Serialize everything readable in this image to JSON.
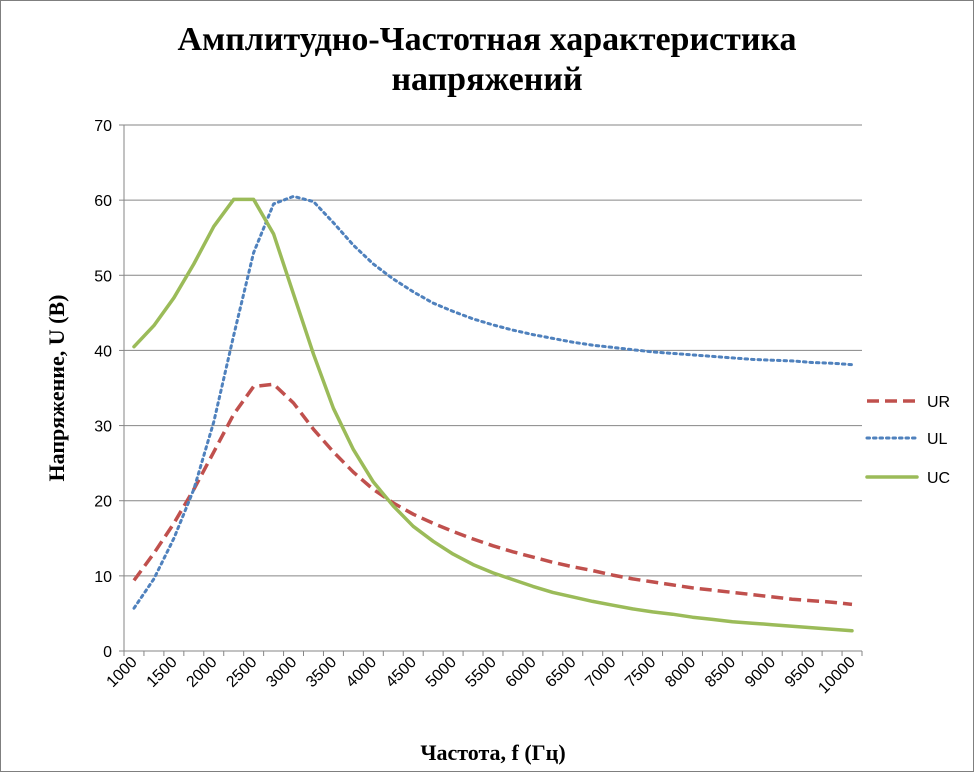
{
  "chart_data": {
    "type": "line",
    "title": "Амплитудно-Частотная характеристика напряжений",
    "title_lines": [
      "Амплитудно-Частотная характеристика",
      "напряжений"
    ],
    "xlabel": "Частота, f (Гц)",
    "ylabel": "Напряжение, U (В)",
    "ylim": [
      0,
      70
    ],
    "y_ticks": [
      "0",
      "10",
      "20",
      "30",
      "40",
      "50",
      "60",
      "70"
    ],
    "grid": true,
    "legend_position": "right",
    "x": [
      1000,
      1250,
      1500,
      1750,
      2000,
      2250,
      2500,
      2750,
      3000,
      3250,
      3500,
      3750,
      4000,
      4250,
      4500,
      4750,
      5000,
      5250,
      5500,
      5750,
      6000,
      6250,
      6500,
      6750,
      7000,
      7250,
      7500,
      7750,
      8000,
      8250,
      8500,
      8750,
      9000,
      9250,
      9500,
      9750,
      10000
    ],
    "x_tick_labels": [
      "1000",
      "1500",
      "2000",
      "2500",
      "3000",
      "3500",
      "4000",
      "4500",
      "5000",
      "5500",
      "6000",
      "6500",
      "7000",
      "7500",
      "8000",
      "8500",
      "9000",
      "9500",
      "10000"
    ],
    "series": [
      {
        "name": "UR",
        "color": "#c0504d",
        "style": "dashed",
        "values": [
          9.4,
          13.0,
          17.0,
          21.5,
          26.5,
          31.5,
          35.2,
          35.5,
          33.0,
          29.5,
          26.5,
          23.8,
          21.5,
          19.7,
          18.2,
          17.0,
          15.9,
          14.9,
          14.0,
          13.2,
          12.5,
          11.8,
          11.2,
          10.7,
          10.1,
          9.6,
          9.2,
          8.8,
          8.4,
          8.1,
          7.8,
          7.5,
          7.2,
          6.9,
          6.7,
          6.5,
          6.2
        ]
      },
      {
        "name": "UL",
        "color": "#4f81bd",
        "style": "dotted",
        "values": [
          5.7,
          9.6,
          15.0,
          21.5,
          30.5,
          42.0,
          53.0,
          59.5,
          60.5,
          59.8,
          57.0,
          54.0,
          51.5,
          49.5,
          47.8,
          46.3,
          45.2,
          44.2,
          43.4,
          42.7,
          42.1,
          41.6,
          41.1,
          40.7,
          40.4,
          40.1,
          39.8,
          39.6,
          39.4,
          39.2,
          39.0,
          38.8,
          38.7,
          38.6,
          38.4,
          38.3,
          38.1
        ]
      },
      {
        "name": "UC",
        "color": "#9bbb59",
        "style": "solid",
        "values": [
          40.5,
          43.3,
          47.0,
          51.5,
          56.5,
          60.1,
          60.1,
          55.5,
          47.5,
          39.5,
          32.3,
          26.8,
          22.5,
          19.3,
          16.6,
          14.6,
          12.9,
          11.5,
          10.4,
          9.5,
          8.6,
          7.8,
          7.2,
          6.6,
          6.1,
          5.6,
          5.2,
          4.9,
          4.5,
          4.2,
          3.9,
          3.7,
          3.5,
          3.3,
          3.1,
          2.9,
          2.7
        ]
      }
    ]
  }
}
